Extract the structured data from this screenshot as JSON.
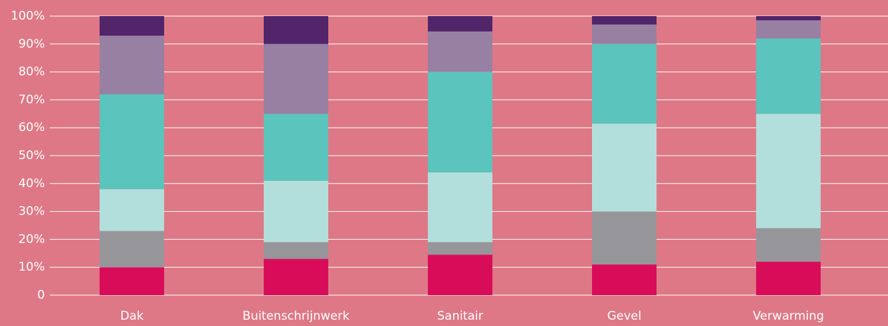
{
  "chart_data": {
    "type": "stacked_bar",
    "categories": [
      "Dak",
      "Buitenschrijnwerk",
      "Sanitair",
      "Gevel",
      "Verwarming"
    ],
    "series": [
      {
        "color": "#d90c5a",
        "values": [
          10,
          13,
          14.5,
          11,
          12
        ]
      },
      {
        "color": "#96969a",
        "values": [
          13,
          6,
          4.5,
          19,
          12
        ]
      },
      {
        "color": "#b2dfdb",
        "values": [
          15,
          22,
          25,
          31.5,
          41
        ]
      },
      {
        "color": "#5bc4bc",
        "values": [
          34,
          24,
          36,
          28.5,
          27
        ]
      },
      {
        "color": "#9880a3",
        "values": [
          21,
          25,
          14.5,
          7,
          6.5
        ]
      },
      {
        "color": "#52246a",
        "values": [
          7,
          10,
          5.5,
          3,
          1.5
        ]
      }
    ],
    "ylim": [
      0,
      100
    ],
    "yticks": [
      0,
      {
        "value": 10,
        "label": "10%"
      },
      {
        "value": 20,
        "label": "20%"
      },
      {
        "value": 30,
        "label": "30%"
      },
      {
        "value": 40,
        "label": "40%"
      },
      {
        "value": 50,
        "label": "50%"
      },
      {
        "value": 60,
        "label": "60%"
      },
      {
        "value": 70,
        "label": "70%"
      },
      {
        "value": 80,
        "label": "80%"
      },
      {
        "value": 90,
        "label": "90%"
      },
      {
        "value": 100,
        "label": "100%"
      }
    ],
    "grid": true
  }
}
